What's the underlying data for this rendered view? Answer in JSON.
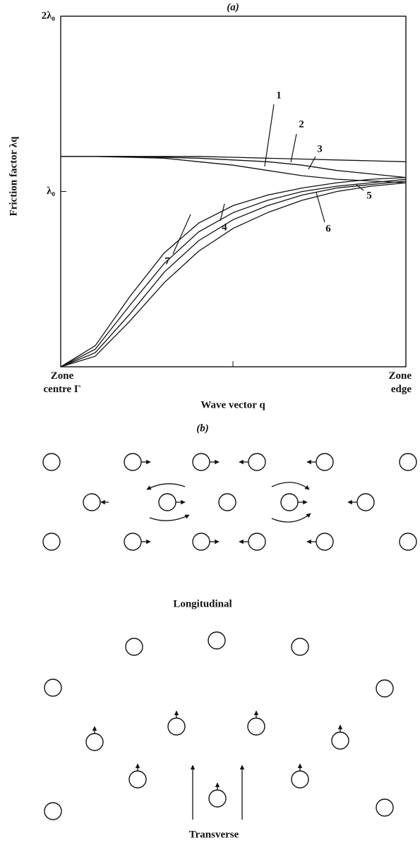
{
  "chart_data": {
    "type": "line",
    "title": "(a)",
    "y_label": "Friction factor λq",
    "x_label": "Wave vector q",
    "x": [
      0,
      0.1,
      0.2,
      0.3,
      0.4,
      0.5,
      0.6,
      0.7,
      0.8,
      0.9,
      1
    ],
    "xlim": [
      0,
      1
    ],
    "xticks": [
      {
        "value": 0,
        "label": "Zone centre Γ"
      },
      {
        "value": 1,
        "label": "Zone edge"
      }
    ],
    "ylim": [
      0,
      2
    ],
    "yticks": [
      {
        "value": 1,
        "label": "λ₀"
      },
      {
        "value": 2,
        "label": "2λ₀"
      }
    ],
    "series": [
      {
        "name": "1",
        "color": "#111111",
        "values": [
          1.2,
          1.2,
          1.195,
          1.19,
          1.17,
          1.15,
          1.12,
          1.09,
          1.07,
          1.06,
          1.05
        ]
      },
      {
        "name": "2",
        "color": "#111111",
        "values": [
          1.2,
          1.2,
          1.2,
          1.2,
          1.2,
          1.195,
          1.19,
          1.185,
          1.18,
          1.175,
          1.17
        ]
      },
      {
        "name": "3",
        "color": "#111111",
        "values": [
          1.2,
          1.2,
          1.2,
          1.195,
          1.19,
          1.18,
          1.17,
          1.15,
          1.12,
          1.1,
          1.08
        ]
      },
      {
        "name": "4",
        "color": "#111111",
        "values": [
          0,
          0.12,
          0.4,
          0.65,
          0.82,
          0.92,
          0.98,
          1.02,
          1.05,
          1.07,
          1.08
        ]
      },
      {
        "name": "5",
        "color": "#111111",
        "values": [
          0,
          0.1,
          0.35,
          0.59,
          0.77,
          0.88,
          0.95,
          1.0,
          1.03,
          1.05,
          1.07
        ]
      },
      {
        "name": "6",
        "color": "#111111",
        "values": [
          0,
          0.08,
          0.3,
          0.54,
          0.72,
          0.84,
          0.92,
          0.98,
          1.02,
          1.04,
          1.06
        ]
      },
      {
        "name": "7",
        "color": "#111111",
        "values": [
          0,
          0.06,
          0.26,
          0.48,
          0.66,
          0.79,
          0.88,
          0.95,
          1.0,
          1.03,
          1.05
        ]
      }
    ]
  },
  "panel_b": {
    "label": "(b)",
    "longitudinal": "Longitudinal",
    "transverse": "Transverse"
  }
}
